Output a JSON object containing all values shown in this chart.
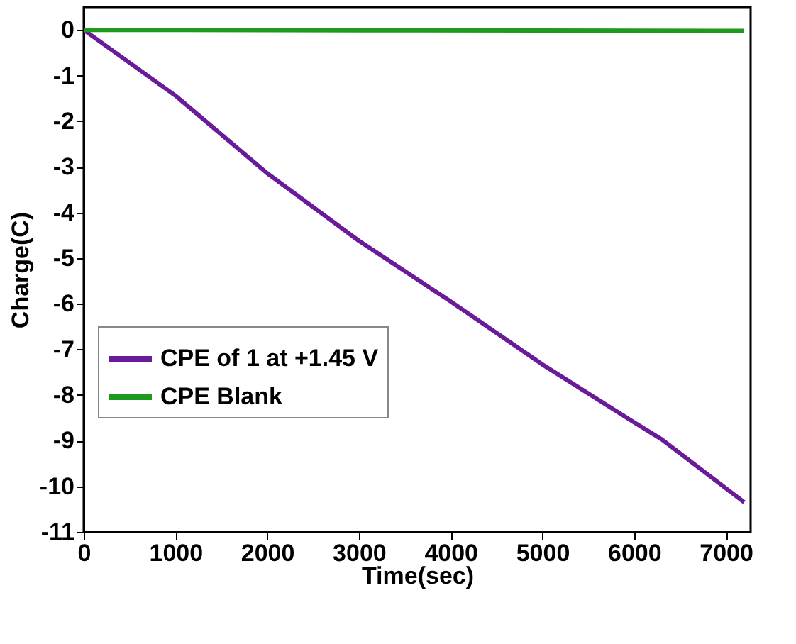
{
  "chart_data": {
    "type": "line",
    "xlabel": "Time(sec)",
    "ylabel": "Charge(C)",
    "xlim": [
      0,
      7270
    ],
    "xticks": [
      0,
      1000,
      2000,
      3000,
      4000,
      5000,
      6000,
      7000
    ],
    "ylim": [
      -11,
      0.5
    ],
    "yticks": [
      -11,
      -10,
      -9,
      -8,
      -7,
      -6,
      -5,
      -4,
      -3,
      -2,
      -1,
      0
    ],
    "grid": false,
    "legend": "left",
    "marker": "none",
    "line_style": "solid",
    "series": [
      {
        "name": "CPE of 1 at +1.45 V",
        "color": "#6a1b9a",
        "x": [
          0,
          1000,
          2000,
          3000,
          4000,
          5000,
          6000,
          6300,
          7200
        ],
        "values": [
          0,
          -1.44,
          -3.14,
          -4.62,
          -5.95,
          -7.33,
          -8.6,
          -8.97,
          -10.35
        ]
      },
      {
        "name": "CPE Blank",
        "color": "#1e9a1e",
        "x": [
          0,
          3600,
          7200
        ],
        "values": [
          0,
          -0.01,
          -0.02
        ]
      }
    ]
  }
}
